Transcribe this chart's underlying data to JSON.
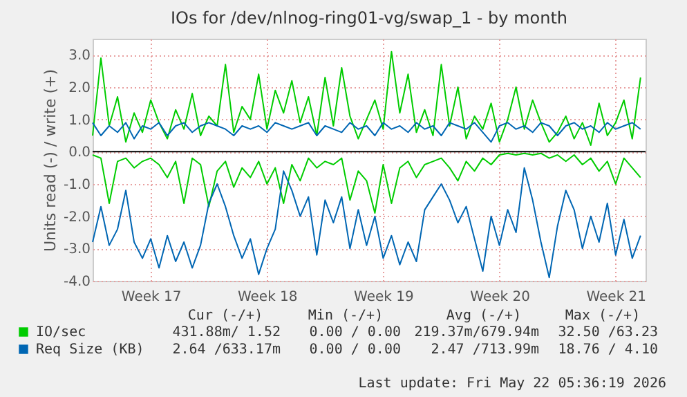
{
  "chart_data": {
    "type": "line",
    "title": "IOs for /dev/nlnog-ring01-vg/swap_1 - by month",
    "ylabel": "Units read (-) / write (+)",
    "x": [
      "2026-04-20T00:00",
      "2026-04-20T12:00",
      "2026-04-21T00:00",
      "2026-04-21T12:00",
      "2026-04-22T00:00",
      "2026-04-22T12:00",
      "2026-04-23T00:00",
      "2026-04-23T12:00",
      "2026-04-24T00:00",
      "2026-04-24T12:00",
      "2026-04-25T00:00",
      "2026-04-25T12:00",
      "2026-04-26T00:00",
      "2026-04-26T12:00",
      "2026-04-27T00:00",
      "2026-04-27T12:00",
      "2026-04-28T00:00",
      "2026-04-28T12:00",
      "2026-04-29T00:00",
      "2026-04-29T12:00",
      "2026-04-30T00:00",
      "2026-04-30T12:00",
      "2026-05-01T00:00",
      "2026-05-01T12:00",
      "2026-05-02T00:00",
      "2026-05-02T12:00",
      "2026-05-03T00:00",
      "2026-05-03T12:00",
      "2026-05-04T00:00",
      "2026-05-04T12:00",
      "2026-05-05T00:00",
      "2026-05-05T12:00",
      "2026-05-06T00:00",
      "2026-05-06T12:00",
      "2026-05-07T00:00",
      "2026-05-07T12:00",
      "2026-05-08T00:00",
      "2026-05-08T12:00",
      "2026-05-09T00:00",
      "2026-05-09T12:00",
      "2026-05-10T00:00",
      "2026-05-10T12:00",
      "2026-05-11T00:00",
      "2026-05-11T12:00",
      "2026-05-12T00:00",
      "2026-05-12T12:00",
      "2026-05-13T00:00",
      "2026-05-13T12:00",
      "2026-05-14T00:00",
      "2026-05-14T12:00",
      "2026-05-15T00:00",
      "2026-05-15T12:00",
      "2026-05-16T00:00",
      "2026-05-16T12:00",
      "2026-05-17T00:00",
      "2026-05-17T12:00",
      "2026-05-18T00:00",
      "2026-05-18T12:00",
      "2026-05-19T00:00",
      "2026-05-19T12:00",
      "2026-05-20T00:00",
      "2026-05-20T12:00",
      "2026-05-21T00:00",
      "2026-05-21T12:00",
      "2026-05-22T00:00",
      "2026-05-22T12:00",
      "2026-05-23T00:00"
    ],
    "series": [
      {
        "name": "IO/sec",
        "color": "#00cc00",
        "values": [
          0.5,
          2.9,
          0.8,
          1.7,
          0.3,
          1.2,
          0.6,
          1.6,
          0.9,
          0.4,
          1.3,
          0.7,
          1.8,
          0.5,
          1.1,
          0.8,
          2.7,
          0.6,
          1.4,
          1.0,
          2.4,
          0.7,
          1.9,
          1.2,
          2.2,
          0.9,
          1.7,
          0.5,
          2.3,
          0.8,
          2.6,
          1.1,
          0.4,
          1.0,
          1.6,
          0.7,
          3.1,
          1.2,
          2.4,
          0.6,
          1.3,
          0.5,
          2.7,
          0.8,
          2.0,
          0.4,
          1.1,
          0.7,
          1.5,
          0.3,
          1.0,
          2.0,
          0.7,
          1.6,
          0.9,
          0.3,
          0.6,
          1.1,
          0.4,
          0.9,
          0.2,
          1.5,
          0.5,
          0.9,
          1.6,
          0.4,
          2.3
        ]
      },
      {
        "color": "#00cc00",
        "values": [
          -0.1,
          -0.2,
          -1.6,
          -0.3,
          -0.2,
          -0.5,
          -0.3,
          -0.2,
          -0.4,
          -0.8,
          -0.3,
          -1.6,
          -0.2,
          -0.4,
          -1.7,
          -0.6,
          -0.3,
          -1.1,
          -0.5,
          -0.8,
          -0.3,
          -1.0,
          -0.5,
          -1.6,
          -0.4,
          -0.9,
          -0.2,
          -0.5,
          -0.3,
          -0.4,
          -0.2,
          -1.5,
          -0.6,
          -0.9,
          -1.9,
          -0.4,
          -1.6,
          -0.5,
          -0.3,
          -0.8,
          -0.4,
          -0.3,
          -0.2,
          -0.5,
          -0.9,
          -0.3,
          -0.6,
          -0.2,
          -0.4,
          -0.1,
          -0.05,
          -0.1,
          -0.05,
          -0.1,
          -0.05,
          -0.2,
          -0.1,
          -0.3,
          -0.1,
          -0.4,
          -0.2,
          -0.6,
          -0.3,
          -1.0,
          -0.2,
          -0.5,
          -0.8
        ]
      },
      {
        "name": "Req Size (KB)",
        "color": "#0066b3",
        "values": [
          0.9,
          0.5,
          0.8,
          0.6,
          0.9,
          0.4,
          0.8,
          0.7,
          0.9,
          0.5,
          0.8,
          0.9,
          0.6,
          0.8,
          0.9,
          0.8,
          0.7,
          0.5,
          0.8,
          0.7,
          0.8,
          0.6,
          0.9,
          0.8,
          0.7,
          0.8,
          0.9,
          0.5,
          0.8,
          0.7,
          0.6,
          0.9,
          0.7,
          0.8,
          0.5,
          0.9,
          0.7,
          0.8,
          0.6,
          0.9,
          0.7,
          0.8,
          0.5,
          0.9,
          0.8,
          0.7,
          0.9,
          0.6,
          0.3,
          0.8,
          0.9,
          0.7,
          0.8,
          0.6,
          0.9,
          0.8,
          0.5,
          0.8,
          0.9,
          0.7,
          0.8,
          0.6,
          0.9,
          0.7,
          0.8,
          0.9,
          0.7
        ]
      },
      {
        "color": "#0066b3",
        "values": [
          -2.8,
          -1.7,
          -2.9,
          -2.4,
          -1.2,
          -2.8,
          -3.3,
          -2.7,
          -3.6,
          -2.6,
          -3.4,
          -2.8,
          -3.6,
          -2.9,
          -1.6,
          -1.0,
          -1.7,
          -2.6,
          -3.3,
          -2.7,
          -3.8,
          -3.0,
          -2.4,
          -0.6,
          -1.2,
          -2.0,
          -1.4,
          -3.2,
          -1.5,
          -2.2,
          -1.4,
          -3.0,
          -1.8,
          -2.9,
          -2.0,
          -3.3,
          -2.6,
          -3.5,
          -2.8,
          -3.4,
          -1.8,
          -1.4,
          -1.0,
          -1.5,
          -2.2,
          -1.7,
          -2.7,
          -3.7,
          -2.0,
          -2.9,
          -1.8,
          -2.5,
          -0.5,
          -1.5,
          -2.8,
          -3.9,
          -2.3,
          -1.2,
          -1.8,
          -3.0,
          -2.0,
          -2.8,
          -1.6,
          -3.2,
          -2.1,
          -3.3,
          -2.6
        ]
      }
    ],
    "xlim": [
      "2026-04-20T00:00",
      "2026-05-23T07:12"
    ],
    "xticks": [
      {
        "value": "2026-04-23T12:00",
        "label": "Week 17"
      },
      {
        "value": "2026-04-30T12:00",
        "label": "Week 18"
      },
      {
        "value": "2026-05-07T12:00",
        "label": "Week 19"
      },
      {
        "value": "2026-05-14T12:00",
        "label": "Week 20"
      },
      {
        "value": "2026-05-21T12:00",
        "label": "Week 21"
      }
    ],
    "ylim": [
      -4,
      3.5
    ],
    "yticks": [
      {
        "value": -4,
        "label": "-4.0"
      },
      {
        "value": -3,
        "label": "-3.0"
      },
      {
        "value": -2,
        "label": "-2.0"
      },
      {
        "value": -1,
        "label": "-1.0"
      },
      {
        "value": 0,
        "label": "0.0"
      },
      {
        "value": 1,
        "label": "1.0"
      },
      {
        "value": 2,
        "label": "2.0"
      },
      {
        "value": 3,
        "label": "3.0"
      }
    ],
    "ref_lines": [
      {
        "axis": "y",
        "value": 0,
        "color": "#000000"
      }
    ],
    "grid": true,
    "legend": "bottom",
    "annotations": [
      "Cur (-/+)",
      "Min (-/+)",
      "Avg (-/+)",
      "Max (-/+)",
      "431.88m/ 1.52",
      "0.00 / 0.00",
      "219.37m/679.94m",
      "32.50 /63.23",
      "2.64 /633.17m",
      "0.00 / 0.00",
      "2.47 /713.99m",
      "18.76 / 4.10",
      "Last update: Fri May 22 05:36:19 2026"
    ]
  }
}
